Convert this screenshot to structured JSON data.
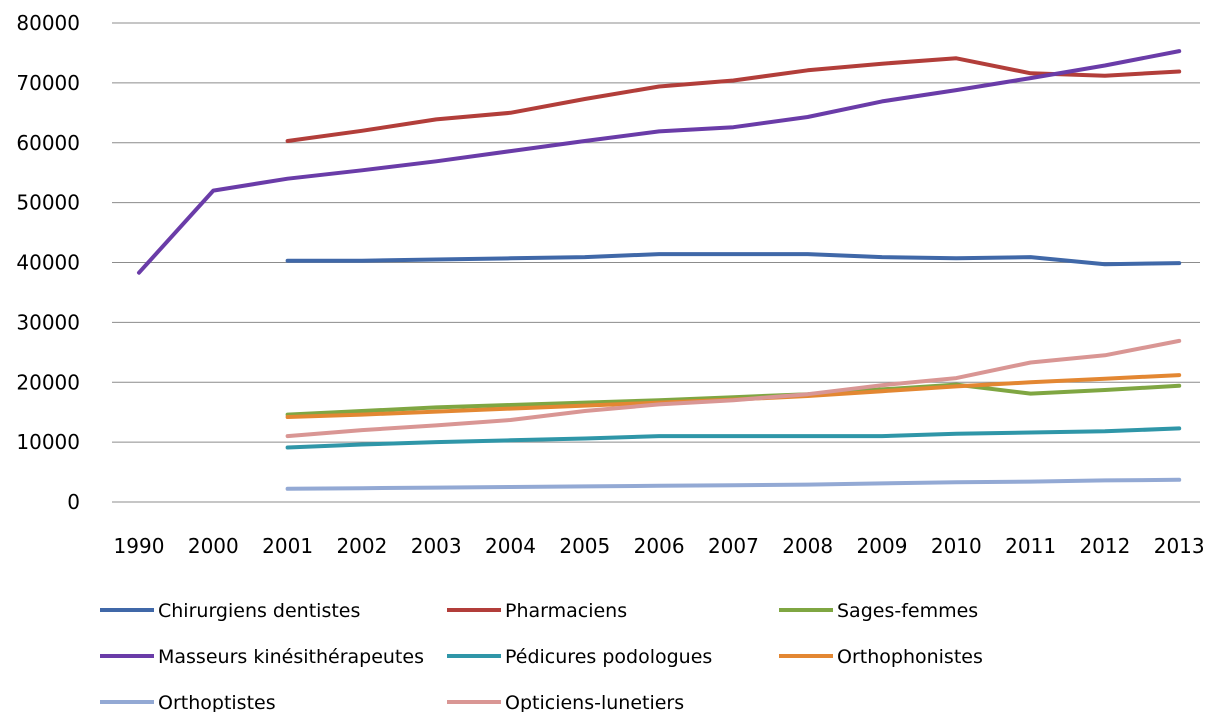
{
  "chart_data": {
    "type": "line",
    "title": "",
    "xlabel": "",
    "ylabel": "",
    "categories": [
      "1990",
      "2000",
      "2001",
      "2002",
      "2003",
      "2004",
      "2005",
      "2006",
      "2007",
      "2008",
      "2009",
      "2010",
      "2011",
      "2012",
      "2013"
    ],
    "ylim": [
      0,
      80000
    ],
    "yticks": [
      0,
      10000,
      20000,
      30000,
      40000,
      50000,
      60000,
      70000,
      80000
    ],
    "ytick_labels": [
      "0",
      "10000",
      "20000",
      "30000",
      "40000",
      "50000",
      "60000",
      "70000",
      "80000"
    ],
    "grid": "horizontal",
    "legend_position": "bottom",
    "series": [
      {
        "name": "Chirurgiens dentistes",
        "color": "#4068A8",
        "values": [
          null,
          null,
          40300,
          40300,
          40500,
          40700,
          40900,
          41400,
          41400,
          41400,
          40900,
          40700,
          40900,
          39700,
          39900
        ]
      },
      {
        "name": "Pharmaciens",
        "color": "#B23E3A",
        "values": [
          null,
          null,
          60300,
          62000,
          63900,
          65000,
          67300,
          69400,
          70400,
          72100,
          73200,
          74100,
          71600,
          71200,
          71900
        ]
      },
      {
        "name": "Sages-femmes",
        "color": "#7FA642",
        "values": [
          null,
          null,
          14600,
          15200,
          15800,
          16200,
          16600,
          17000,
          17500,
          18000,
          18800,
          19600,
          18100,
          18700,
          19400
        ]
      },
      {
        "name": "Masseurs kinésithérapeutes",
        "color": "#6A3CA8",
        "values": [
          38300,
          52000,
          54000,
          55400,
          56900,
          58600,
          60300,
          61900,
          62600,
          64300,
          66900,
          68800,
          70800,
          72900,
          75300
        ]
      },
      {
        "name": "Pédicures podologues",
        "color": "#2F96A8",
        "values": [
          null,
          null,
          9100,
          9600,
          10000,
          10300,
          10600,
          11000,
          11000,
          11000,
          11000,
          11400,
          11600,
          11800,
          12300
        ]
      },
      {
        "name": "Orthophonistes",
        "color": "#E38732",
        "values": [
          null,
          null,
          14200,
          14600,
          15100,
          15600,
          16100,
          16600,
          17100,
          17700,
          18500,
          19300,
          20000,
          20600,
          21200
        ]
      },
      {
        "name": "Orthoptistes",
        "color": "#93A9D4",
        "values": [
          null,
          null,
          2200,
          2300,
          2400,
          2500,
          2600,
          2700,
          2800,
          2900,
          3100,
          3300,
          3400,
          3600,
          3700
        ]
      },
      {
        "name": "Opticiens-lunetiers",
        "color": "#D99694",
        "values": [
          null,
          null,
          11000,
          12000,
          12800,
          13700,
          15200,
          16300,
          17000,
          18000,
          19500,
          20700,
          23300,
          24500,
          26900
        ]
      }
    ]
  }
}
